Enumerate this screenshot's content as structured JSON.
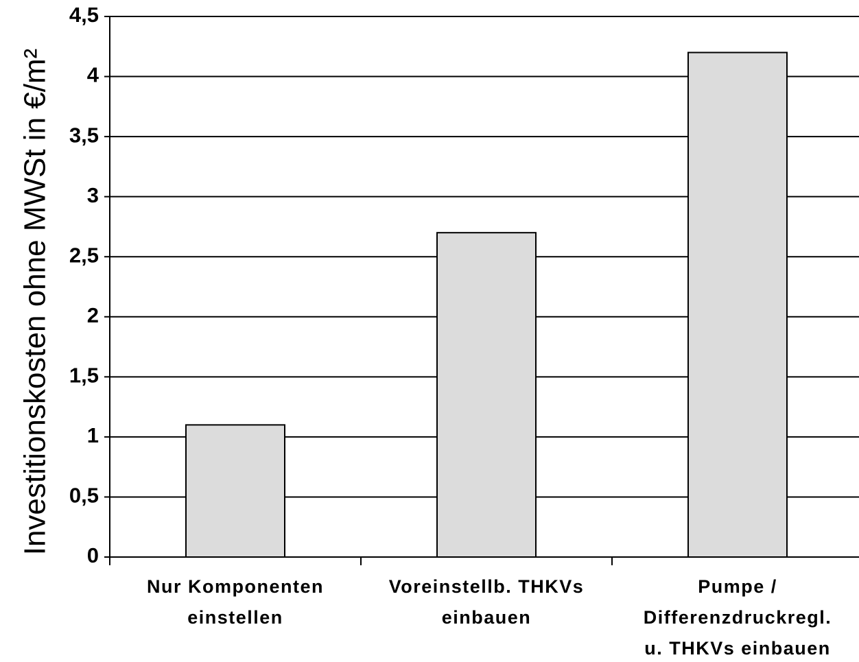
{
  "chart_data": {
    "type": "bar",
    "y_label": "Investitionskosten ohne MWSt in €/m²",
    "categories": [
      [
        "Nur Komponenten",
        "einstellen"
      ],
      [
        "Voreinstellb. THKVs",
        "einbauen"
      ],
      [
        "Pumpe /",
        "Differenzdruckregl.",
        "u. THKVs einbauen"
      ]
    ],
    "values": [
      1.1,
      2.7,
      4.2
    ],
    "color": "#dcdcdc",
    "ylim": [
      0,
      4.5
    ],
    "yticks": [
      0,
      {
        "value": 0.5,
        "label": "0,5"
      },
      1,
      {
        "value": 1.5,
        "label": "1,5"
      },
      2,
      {
        "value": 2.5,
        "label": "2,5"
      },
      3,
      {
        "value": 3.5,
        "label": "3,5"
      },
      4,
      {
        "value": 4.5,
        "label": "4,5"
      }
    ],
    "grid": true
  }
}
